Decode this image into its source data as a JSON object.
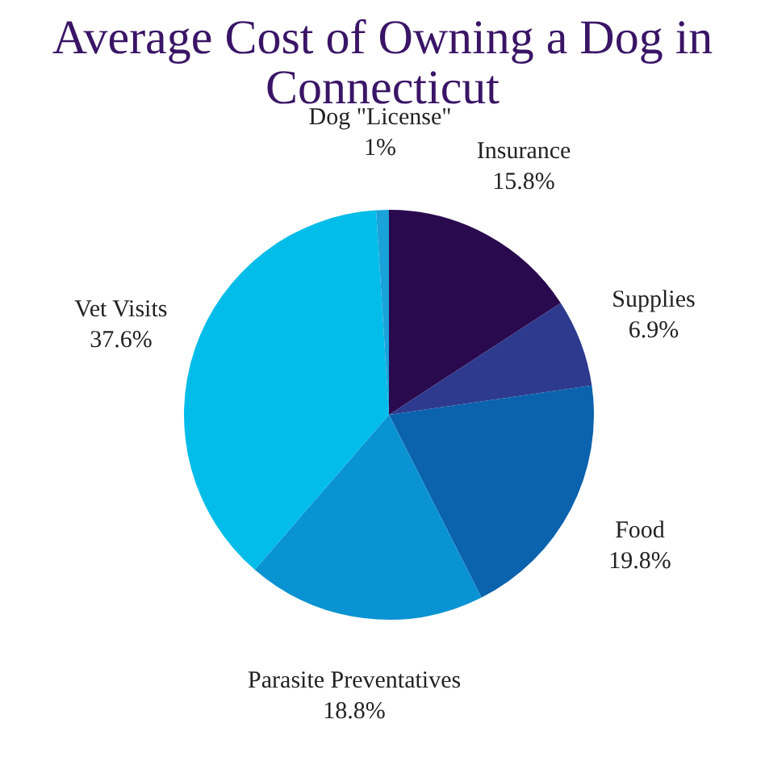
{
  "chart_data": {
    "type": "pie",
    "title": "Average Cost of Owning a Dog in Connecticut",
    "categories": [
      "Insurance",
      "Supplies",
      "Food",
      "Parasite Preventatives",
      "Vet Visits",
      "Dog \"License\""
    ],
    "values": [
      15.8,
      6.9,
      19.8,
      18.8,
      37.6,
      1
    ],
    "value_labels": [
      "15.8%",
      "6.9%",
      "19.8%",
      "18.8%",
      "37.6%",
      "1%"
    ],
    "colors": [
      "#2a0a4e",
      "#2d3a8e",
      "#0b62ad",
      "#0a93d2",
      "#02bde9",
      "#1aa3da"
    ],
    "legend": false
  }
}
